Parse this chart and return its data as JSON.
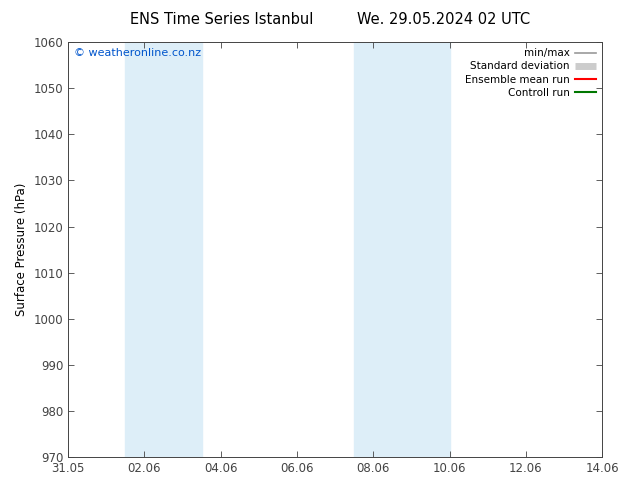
{
  "title_left": "ENS Time Series Istanbul",
  "title_right": "We. 29.05.2024 02 UTC",
  "ylabel": "Surface Pressure (hPa)",
  "ylim": [
    970,
    1060
  ],
  "yticks": [
    970,
    980,
    990,
    1000,
    1010,
    1020,
    1030,
    1040,
    1050,
    1060
  ],
  "xtick_labels": [
    "31.05",
    "02.06",
    "04.06",
    "06.06",
    "08.06",
    "10.06",
    "12.06",
    "14.06"
  ],
  "xtick_positions": [
    0,
    2,
    4,
    6,
    8,
    10,
    12,
    14
  ],
  "shaded_regions": [
    {
      "xmin": 1.5,
      "xmax": 3.5
    },
    {
      "xmin": 7.5,
      "xmax": 10.0
    }
  ],
  "shaded_color": "#ddeef8",
  "watermark": "© weatheronline.co.nz",
  "watermark_color": "#0055cc",
  "legend_entries": [
    {
      "label": "min/max",
      "color": "#999999",
      "lw": 1.2
    },
    {
      "label": "Standard deviation",
      "color": "#cccccc",
      "lw": 5
    },
    {
      "label": "Ensemble mean run",
      "color": "#ff0000",
      "lw": 1.5
    },
    {
      "label": "Controll run",
      "color": "#007700",
      "lw": 1.5
    }
  ],
  "bg_color": "#ffffff",
  "spine_color": "#444444",
  "tick_color": "#444444",
  "font_size": 8.5,
  "title_font_size": 10.5
}
